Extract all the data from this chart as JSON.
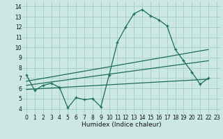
{
  "bg_color": "#cce8e4",
  "grid_color": "#aacfcb",
  "line_color": "#1a6b5a",
  "xlabel": "Humidex (Indice chaleur)",
  "xlim": [
    -0.5,
    23.5
  ],
  "ylim": [
    3.5,
    14.5
  ],
  "xticks": [
    0,
    1,
    2,
    3,
    4,
    5,
    6,
    7,
    8,
    9,
    10,
    11,
    12,
    13,
    14,
    15,
    16,
    17,
    18,
    19,
    20,
    21,
    22,
    23
  ],
  "yticks": [
    4,
    5,
    6,
    7,
    8,
    9,
    10,
    11,
    12,
    13,
    14
  ],
  "line1_x": [
    0,
    1,
    2,
    3,
    4,
    5,
    6,
    7,
    8,
    9,
    10,
    11,
    12,
    13,
    14,
    15,
    16,
    17,
    18,
    19,
    20,
    21,
    22
  ],
  "line1_y": [
    7.3,
    5.8,
    6.3,
    6.5,
    6.1,
    4.1,
    5.1,
    4.9,
    5.0,
    4.2,
    7.3,
    10.5,
    12.0,
    13.3,
    13.7,
    13.1,
    12.7,
    12.1,
    9.8,
    8.7,
    7.6,
    6.4,
    7.0
  ],
  "line2_x": [
    0,
    22
  ],
  "line2_y": [
    6.7,
    9.8
  ],
  "line3_x": [
    0,
    22
  ],
  "line3_y": [
    6.3,
    8.7
  ],
  "line4_x": [
    0,
    22
  ],
  "line4_y": [
    5.9,
    6.9
  ]
}
